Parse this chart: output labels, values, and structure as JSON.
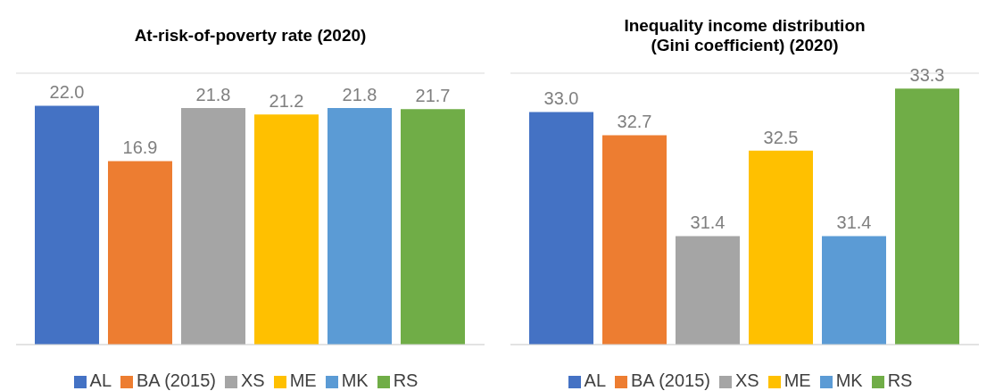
{
  "chart_data": [
    {
      "type": "bar",
      "title": "At-risk-of-poverty rate (2020)",
      "categories": [
        null
      ],
      "series": [
        {
          "name": "AL",
          "color": "#4472c4",
          "values": [
            22.0
          ],
          "value_labels": [
            "22.0"
          ]
        },
        {
          "name": "BA (2015)",
          "color": "#ed7d31",
          "values": [
            16.9
          ],
          "value_labels": [
            "16.9"
          ]
        },
        {
          "name": "XS",
          "color": "#a5a5a5",
          "values": [
            21.8
          ],
          "value_labels": [
            "21.8"
          ]
        },
        {
          "name": "ME",
          "color": "#ffc000",
          "values": [
            21.2
          ],
          "value_labels": [
            "21.2"
          ]
        },
        {
          "name": "MK",
          "color": "#5b9bd5",
          "values": [
            21.8
          ],
          "value_labels": [
            "21.8"
          ]
        },
        {
          "name": "RS",
          "color": "#70ad47",
          "values": [
            21.7
          ],
          "value_labels": [
            "21.7"
          ]
        }
      ],
      "ylim": [
        0,
        25
      ],
      "grid": "y",
      "tick_labels": false,
      "legend": "bottom"
    },
    {
      "type": "bar",
      "title": "Inequality income distribution (Gini coefficient) (2020)",
      "categories": [
        null
      ],
      "series": [
        {
          "name": "AL",
          "color": "#4472c4",
          "values": [
            33.0
          ],
          "value_labels": [
            "33.0"
          ]
        },
        {
          "name": "BA (2015)",
          "color": "#ed7d31",
          "values": [
            32.7
          ],
          "value_labels": [
            "32.7"
          ]
        },
        {
          "name": "XS",
          "color": "#a5a5a5",
          "values": [
            31.4
          ],
          "value_labels": [
            "31.4"
          ]
        },
        {
          "name": "ME",
          "color": "#ffc000",
          "values": [
            32.5
          ],
          "value_labels": [
            "32.5"
          ]
        },
        {
          "name": "MK",
          "color": "#5b9bd5",
          "values": [
            31.4
          ],
          "value_labels": [
            "31.4"
          ]
        },
        {
          "name": "RS",
          "color": "#70ad47",
          "values": [
            33.3
          ],
          "value_labels": [
            "33.3"
          ]
        }
      ],
      "ylim": [
        30,
        33.5
      ],
      "grid": "y",
      "tick_labels": false,
      "legend": "bottom"
    }
  ]
}
